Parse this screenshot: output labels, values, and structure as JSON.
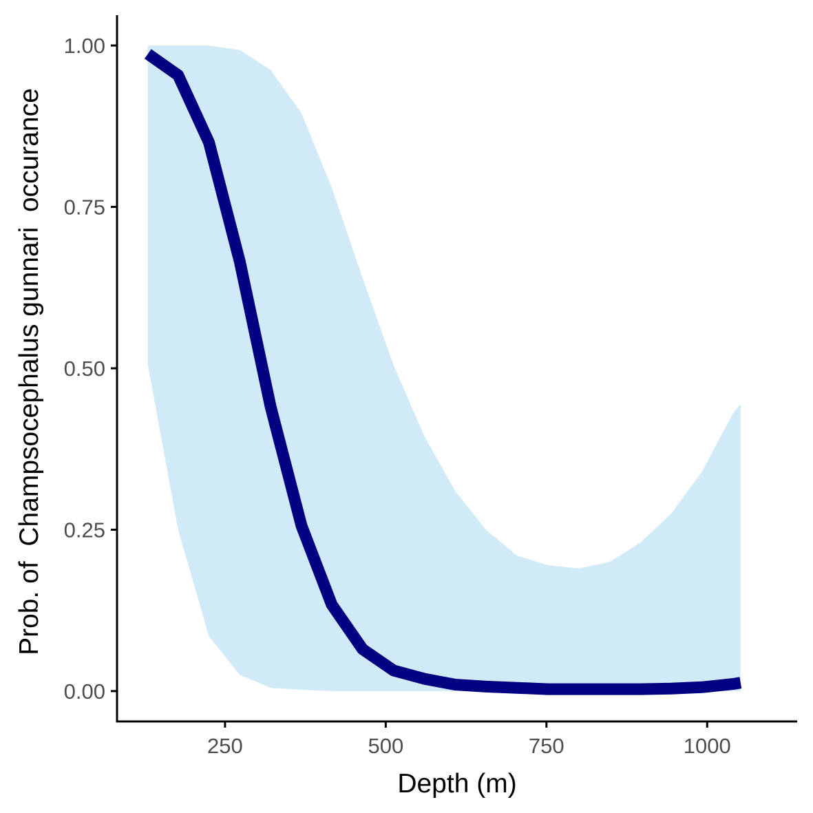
{
  "chart_data": {
    "type": "line",
    "title": "",
    "xlabel": "Depth (m)",
    "ylabel": "Prob. of  Champsocephalus gunnari  occurance",
    "xlim": [
      82,
      1140
    ],
    "ylim": [
      -0.047,
      1.047
    ],
    "x_ticks": [
      250,
      500,
      750,
      1000
    ],
    "x_tick_labels": [
      "250",
      "500",
      "750",
      "1000"
    ],
    "y_ticks": [
      0,
      0.25,
      0.5,
      0.75,
      1
    ],
    "y_tick_labels": [
      "0.00",
      "0.25",
      "0.50",
      "0.75",
      "1.00"
    ],
    "grid": false,
    "legend": "none",
    "colors": {
      "line": "#000080",
      "band": "#d1eaf7",
      "axis": "#000000",
      "tick_text": "#4d4d4d"
    },
    "series": [
      {
        "x": [
          130,
          177,
          225,
          273,
          321,
          369,
          416,
          464,
          512,
          560,
          608,
          656,
          704,
          752,
          800,
          848,
          896,
          944,
          992,
          1040,
          1052
        ],
        "y": [
          0.987,
          0.954,
          0.85,
          0.665,
          0.44,
          0.256,
          0.134,
          0.065,
          0.032,
          0.019,
          0.01,
          0.007,
          0.005,
          0.003,
          0.003,
          0.003,
          0.003,
          0.004,
          0.006,
          0.011,
          0.013
        ],
        "lower": [
          0.505,
          0.25,
          0.085,
          0.025,
          0.005,
          0.002,
          0,
          0,
          0,
          0,
          0,
          0,
          0,
          0,
          0,
          0,
          0,
          0,
          0,
          0,
          0
        ],
        "upper": [
          1.0,
          1.0,
          1.0,
          0.993,
          0.962,
          0.895,
          0.78,
          0.64,
          0.505,
          0.395,
          0.31,
          0.25,
          0.21,
          0.195,
          0.19,
          0.2,
          0.23,
          0.275,
          0.34,
          0.43,
          0.445
        ]
      }
    ]
  }
}
